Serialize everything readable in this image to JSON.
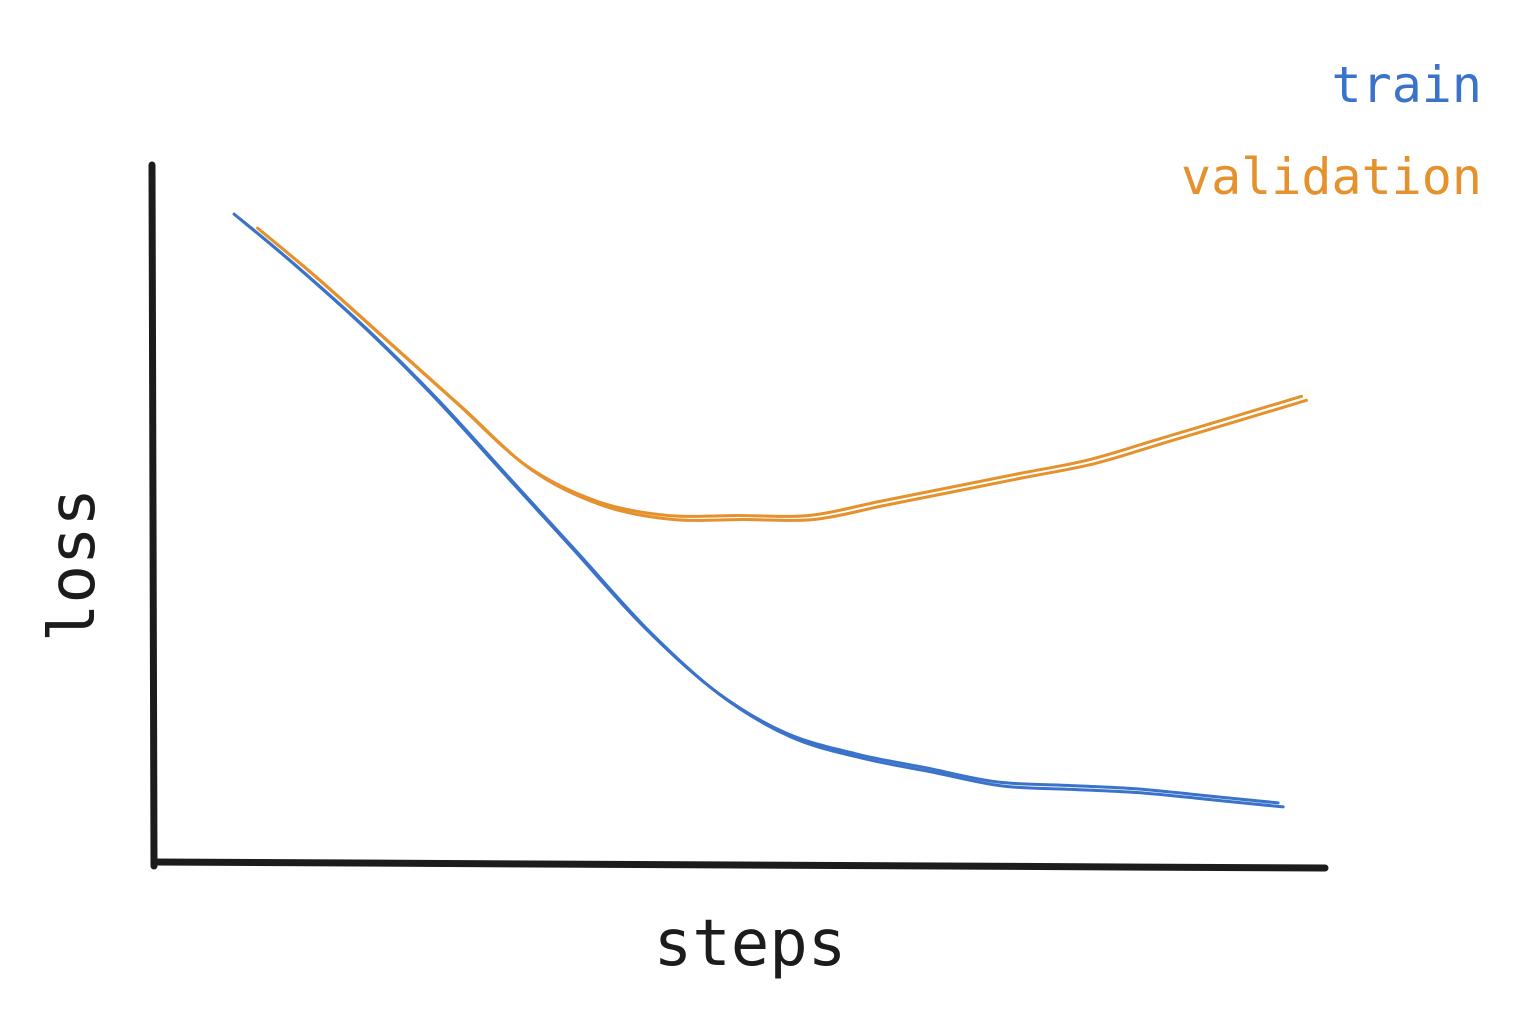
{
  "chart_data": {
    "type": "line",
    "title": "",
    "xlabel": "steps",
    "ylabel": "loss",
    "xlim": [
      0,
      1
    ],
    "ylim": [
      0,
      1
    ],
    "grid": false,
    "legend_position": "top-right",
    "axis_color": "#1c1c1c",
    "series": [
      {
        "name": "train",
        "color": "#3a73c9",
        "x": [
          0.07,
          0.12,
          0.18,
          0.24,
          0.3,
          0.36,
          0.42,
          0.48,
          0.54,
          0.6,
          0.66,
          0.72,
          0.78,
          0.84,
          0.9,
          0.96
        ],
        "y": [
          0.93,
          0.86,
          0.77,
          0.67,
          0.56,
          0.45,
          0.34,
          0.25,
          0.19,
          0.16,
          0.14,
          0.12,
          0.115,
          0.11,
          0.1,
          0.09
        ]
      },
      {
        "name": "validation",
        "color": "#e5912e",
        "x": [
          0.09,
          0.14,
          0.2,
          0.26,
          0.32,
          0.38,
          0.44,
          0.5,
          0.56,
          0.62,
          0.68,
          0.74,
          0.8,
          0.86,
          0.92,
          0.98
        ],
        "y": [
          0.91,
          0.84,
          0.75,
          0.66,
          0.57,
          0.52,
          0.5,
          0.5,
          0.5,
          0.52,
          0.54,
          0.56,
          0.58,
          0.61,
          0.64,
          0.67
        ]
      }
    ]
  }
}
